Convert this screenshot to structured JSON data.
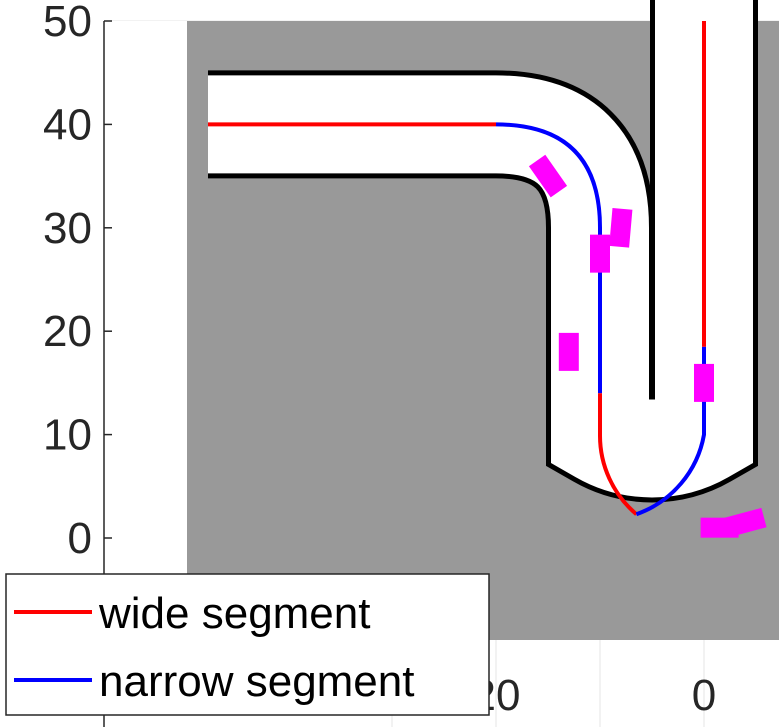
{
  "chart_data": {
    "type": "line",
    "title": "",
    "xlabel": "",
    "ylabel": "",
    "x_reversed": true,
    "xlim": [
      30,
      -5
    ],
    "ylim": [
      -10,
      50
    ],
    "y_ticks": [
      0,
      10,
      20,
      30,
      40,
      50
    ],
    "y_tick_labels": [
      "0",
      "10",
      "20",
      "30",
      "40",
      "50"
    ],
    "x_ticks": [
      20,
      0
    ],
    "x_tick_labels": [
      "20",
      "0"
    ],
    "grid": true,
    "legend": {
      "placement": "bottom-left",
      "entries": [
        "wide segment",
        "narrow segment"
      ]
    },
    "road_boundaries": [
      {
        "points": [
          [
            40,
            45
          ],
          [
            20,
            45
          ],
          [
            10,
            35
          ],
          [
            10,
            10
          ],
          [
            0,
            0
          ],
          [
            -10,
            10
          ],
          [
            -10,
            50
          ]
        ],
        "curves": [
          "Q 10 45",
          "Q 10 0",
          "Q -10 0"
        ]
      },
      {
        "points": [
          [
            40,
            35
          ],
          [
            20,
            35
          ],
          [
            15,
            30
          ],
          [
            15,
            10
          ],
          [
            5,
            5
          ],
          [
            -5,
            10
          ],
          [
            -5,
            50
          ]
        ]
      }
    ],
    "series": [
      {
        "name": "wide segment",
        "color": "#ff0000",
        "paths": [
          [
            [
              40,
              40
            ],
            [
              20,
              40
            ]
          ],
          [
            [
              10,
              14
            ],
            [
              10,
              10
            ],
            [
              6.5,
              2
            ]
          ],
          [
            [
              0,
              18.5
            ],
            [
              0,
              50
            ]
          ]
        ]
      },
      {
        "name": "narrow segment",
        "color": "#0000ff",
        "paths": [
          [
            [
              20,
              40
            ],
            [
              10,
              30
            ],
            [
              10,
              14
            ]
          ],
          [
            [
              6.5,
              2
            ],
            [
              0,
              0
            ],
            [
              0,
              18.5
            ]
          ]
        ]
      }
    ],
    "obstacles": [
      {
        "x": 15,
        "y": 35,
        "angle": -35
      },
      {
        "x": 8,
        "y": 30,
        "angle": 5
      },
      {
        "x": 10,
        "y": 27.5,
        "angle": 0
      },
      {
        "x": 13,
        "y": 18,
        "angle": 0
      },
      {
        "x": 0,
        "y": 15,
        "angle": 0
      },
      {
        "x": -4,
        "y": 1.5,
        "angle": -15
      },
      {
        "x": -1.5,
        "y": 1,
        "angle": 0
      }
    ],
    "colors": {
      "background_region": "#999999",
      "road": "#ffffff",
      "boundary": "#000000",
      "obstacle": "#ff00ff"
    }
  }
}
